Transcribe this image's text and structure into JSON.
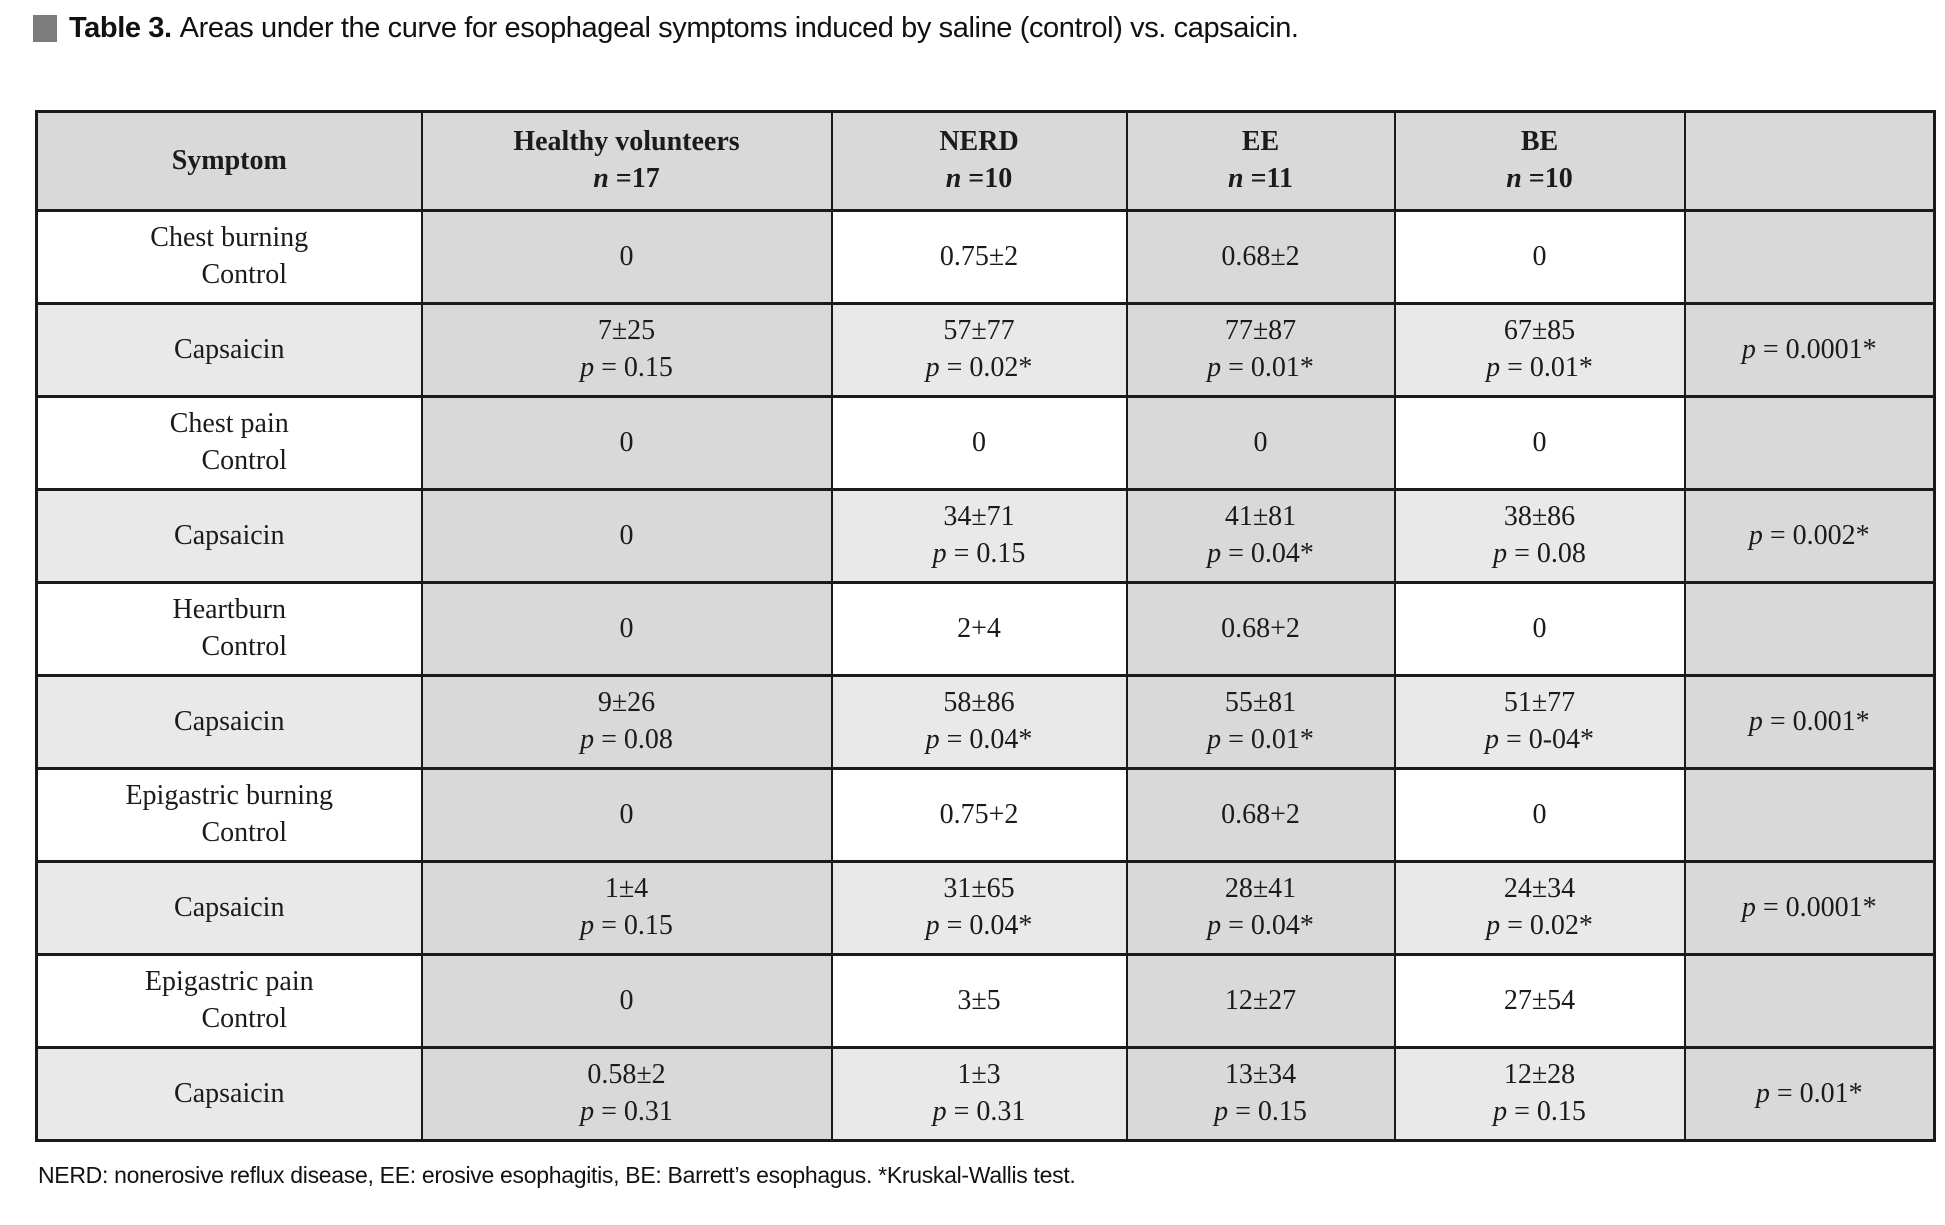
{
  "caption": {
    "icon": "square-bullet-icon",
    "label": "Table 3.",
    "text": "Areas under the curve for esophageal symptoms induced by saline (control) vs. capsaicin."
  },
  "table": {
    "n_symbol": "n",
    "p_symbol": "p",
    "header": {
      "symptom": "Symptom",
      "groups": [
        {
          "label": "Healthy volunteers",
          "n": " =17"
        },
        {
          "label": "NERD",
          "n": " =10"
        },
        {
          "label": "EE",
          "n": " =11"
        },
        {
          "label": "BE",
          "n": " =10"
        }
      ]
    },
    "rows": [
      {
        "type": "control",
        "symptom": "Chest burning",
        "sub": "Control",
        "cells": [
          {
            "value": "0"
          },
          {
            "value": "0.75±2"
          },
          {
            "value": "0.68±2"
          },
          {
            "value": "0"
          },
          {}
        ]
      },
      {
        "type": "capsaicin",
        "symptom": "Capsaicin",
        "cells": [
          {
            "value": "7±25",
            "p": " = 0.15"
          },
          {
            "value": "57±77",
            "p": " = 0.02*"
          },
          {
            "value": "77±87",
            "p": " = 0.01*"
          },
          {
            "value": "67±85",
            "p": " = 0.01*"
          },
          {
            "p": " = 0.0001*"
          }
        ]
      },
      {
        "type": "control",
        "symptom": "Chest pain",
        "sub": "Control",
        "cells": [
          {
            "value": "0"
          },
          {
            "value": "0"
          },
          {
            "value": "0"
          },
          {
            "value": "0"
          },
          {}
        ]
      },
      {
        "type": "capsaicin",
        "symptom": "Capsaicin",
        "cells": [
          {
            "value": "0"
          },
          {
            "value": "34±71",
            "p": " = 0.15"
          },
          {
            "value": "41±81",
            "p": " = 0.04*"
          },
          {
            "value": "38±86",
            "p": " = 0.08"
          },
          {
            "p": " = 0.002*"
          }
        ]
      },
      {
        "type": "control",
        "symptom": "Heartburn",
        "sub": "Control",
        "cells": [
          {
            "value": "0"
          },
          {
            "value": "2+4"
          },
          {
            "value": "0.68+2"
          },
          {
            "value": "0"
          },
          {}
        ]
      },
      {
        "type": "capsaicin",
        "symptom": "Capsaicin",
        "cells": [
          {
            "value": "9±26",
            "p": " = 0.08"
          },
          {
            "value": "58±86",
            "p": " = 0.04*"
          },
          {
            "value": "55±81",
            "p": " = 0.01*"
          },
          {
            "value": "51±77",
            "p": " = 0-04*"
          },
          {
            "p": " = 0.001*"
          }
        ]
      },
      {
        "type": "control",
        "symptom": "Epigastric burning",
        "sub": "Control",
        "cells": [
          {
            "value": "0"
          },
          {
            "value": "0.75+2"
          },
          {
            "value": "0.68+2"
          },
          {
            "value": "0"
          },
          {}
        ]
      },
      {
        "type": "capsaicin",
        "symptom": "Capsaicin",
        "cells": [
          {
            "value": "1±4",
            "p": " = 0.15"
          },
          {
            "value": "31±65",
            "p": " = 0.04*"
          },
          {
            "value": "28±41",
            "p": " = 0.04*"
          },
          {
            "value": "24±34",
            "p": " = 0.02*"
          },
          {
            "p": " = 0.0001*"
          }
        ]
      },
      {
        "type": "control",
        "symptom": "Epigastric pain",
        "sub": "Control",
        "cells": [
          {
            "value": "0"
          },
          {
            "value": "3±5"
          },
          {
            "value": "12±27"
          },
          {
            "value": "27±54"
          },
          {}
        ]
      },
      {
        "type": "capsaicin",
        "symptom": "Capsaicin",
        "cells": [
          {
            "value": "0.58±2",
            "p": " = 0.31"
          },
          {
            "value": "1±3",
            "p": " = 0.31"
          },
          {
            "value": "13±34",
            "p": " = 0.15"
          },
          {
            "value": "12±28",
            "p": " = 0.15"
          },
          {
            "p": " = 0.01*"
          }
        ]
      }
    ]
  },
  "footnote": "NERD: nonerosive reflux disease, EE: erosive esophagitis, BE: Barrett’s esophagus. *Kruskal-Wallis test."
}
